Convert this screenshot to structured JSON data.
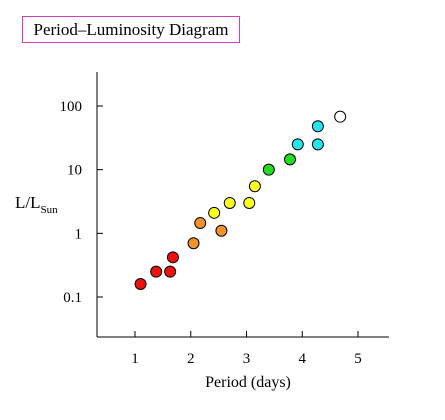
{
  "chart_data": {
    "type": "scatter",
    "title": "Period–Luminosity Diagram",
    "xlabel": "Period (days)",
    "ylabel": {
      "main": "L/L",
      "subscript": "Sun"
    },
    "xlim": [
      0.3,
      5.5
    ],
    "ylim": [
      0.04,
      300
    ],
    "yscale": "log",
    "x_ticks": [
      1,
      2,
      3,
      4,
      5
    ],
    "y_ticks": [
      0.1,
      1,
      10,
      100
    ],
    "y_tick_labels": [
      "0.1",
      "1",
      "10",
      "100"
    ],
    "grid": false,
    "points": [
      {
        "x": 1.1,
        "y": 0.16,
        "color": "#ee1111"
      },
      {
        "x": 1.38,
        "y": 0.25,
        "color": "#ee1111"
      },
      {
        "x": 1.63,
        "y": 0.25,
        "color": "#ee1111"
      },
      {
        "x": 1.68,
        "y": 0.42,
        "color": "#ee1111"
      },
      {
        "x": 2.05,
        "y": 0.7,
        "color": "#f0932b"
      },
      {
        "x": 2.17,
        "y": 1.45,
        "color": "#f0932b"
      },
      {
        "x": 2.55,
        "y": 1.1,
        "color": "#f0932b"
      },
      {
        "x": 2.42,
        "y": 2.1,
        "color": "#ffff22"
      },
      {
        "x": 2.7,
        "y": 3.0,
        "color": "#ffff22"
      },
      {
        "x": 3.05,
        "y": 3.0,
        "color": "#ffff22"
      },
      {
        "x": 3.15,
        "y": 5.5,
        "color": "#ffff22"
      },
      {
        "x": 3.4,
        "y": 10.0,
        "color": "#22dd22"
      },
      {
        "x": 3.78,
        "y": 14.5,
        "color": "#22dd22"
      },
      {
        "x": 3.92,
        "y": 25.0,
        "color": "#22e5f0"
      },
      {
        "x": 4.28,
        "y": 25.0,
        "color": "#22e5f0"
      },
      {
        "x": 4.28,
        "y": 48.0,
        "color": "#22e5f0"
      },
      {
        "x": 4.68,
        "y": 68.0,
        "color": "#ffffff"
      }
    ]
  }
}
